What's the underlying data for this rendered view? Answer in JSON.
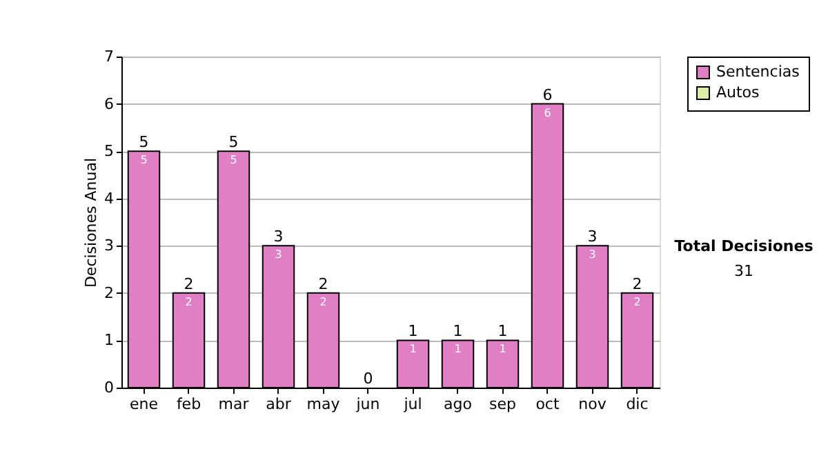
{
  "chart_data": {
    "type": "bar",
    "ylabel": "Decisiones Anual",
    "categories": [
      "ene",
      "feb",
      "mar",
      "abr",
      "may",
      "jun",
      "jul",
      "ago",
      "sep",
      "oct",
      "nov",
      "dic"
    ],
    "stacked": true,
    "series": [
      {
        "name": "Sentencias",
        "color": "#e07fc4",
        "values": [
          5,
          2,
          5,
          3,
          2,
          0,
          1,
          1,
          1,
          6,
          3,
          2
        ],
        "value_labels": [
          "5",
          "2",
          "5",
          "3",
          "2",
          null,
          "1",
          "1",
          "1",
          "6",
          "3",
          "2"
        ]
      },
      {
        "name": "Autos",
        "color": "#dcf0a8",
        "values": [
          0,
          0,
          0,
          0,
          0,
          0,
          0,
          0,
          0,
          0,
          0,
          0
        ]
      }
    ],
    "totals": [
      "5",
      "2",
      "5",
      "3",
      "2",
      "0",
      "1",
      "1",
      "1",
      "6",
      "3",
      "2"
    ],
    "ylim": [
      0,
      7
    ],
    "yticks": [
      0,
      1,
      2,
      3,
      4,
      5,
      6,
      7
    ],
    "grid": "y",
    "legend": "right",
    "annotations": [
      "Total Decisiones",
      "31"
    ]
  }
}
